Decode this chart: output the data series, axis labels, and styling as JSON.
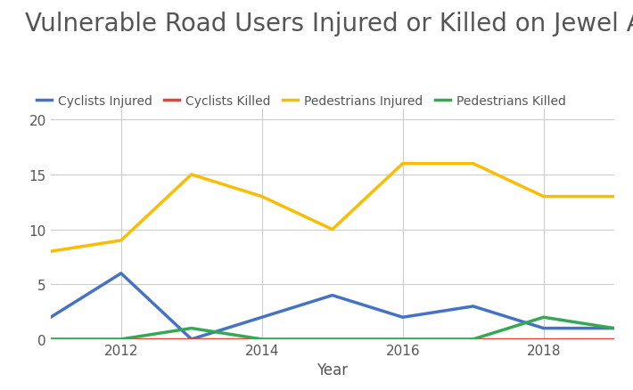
{
  "title": "Vulnerable Road Users Injured or Killed on Jewel Ave",
  "xlabel": "Year",
  "ylabel": "",
  "years": [
    2011,
    2012,
    2013,
    2014,
    2015,
    2016,
    2017,
    2018,
    2019
  ],
  "cyclists_injured": [
    2,
    6,
    0,
    2,
    4,
    2,
    3,
    1,
    1
  ],
  "cyclists_killed": [
    0,
    0,
    0,
    0,
    0,
    0,
    0,
    0,
    0
  ],
  "pedestrians_injured": [
    8,
    9,
    15,
    13,
    10,
    16,
    16,
    13,
    13
  ],
  "pedestrians_killed": [
    0,
    0,
    1,
    0,
    0,
    0,
    0,
    2,
    1
  ],
  "line_colors": {
    "cyclists_injured": "#4472C4",
    "cyclists_killed": "#EA4335",
    "pedestrians_injured": "#FBBC04",
    "pedestrians_killed": "#34A853"
  },
  "legend_labels": [
    "Cyclists Injured",
    "Cyclists Killed",
    "Pedestrians Injured",
    "Pedestrians Killed"
  ],
  "ylim": [
    0,
    21
  ],
  "yticks": [
    0,
    5,
    10,
    15,
    20
  ],
  "xticks": [
    2012,
    2014,
    2016,
    2018
  ],
  "title_fontsize": 20,
  "label_fontsize": 12,
  "legend_fontsize": 10,
  "tick_fontsize": 11,
  "line_width": 2.5,
  "background_color": "#ffffff",
  "plot_background": "#ffffff",
  "grid_color": "#cccccc"
}
